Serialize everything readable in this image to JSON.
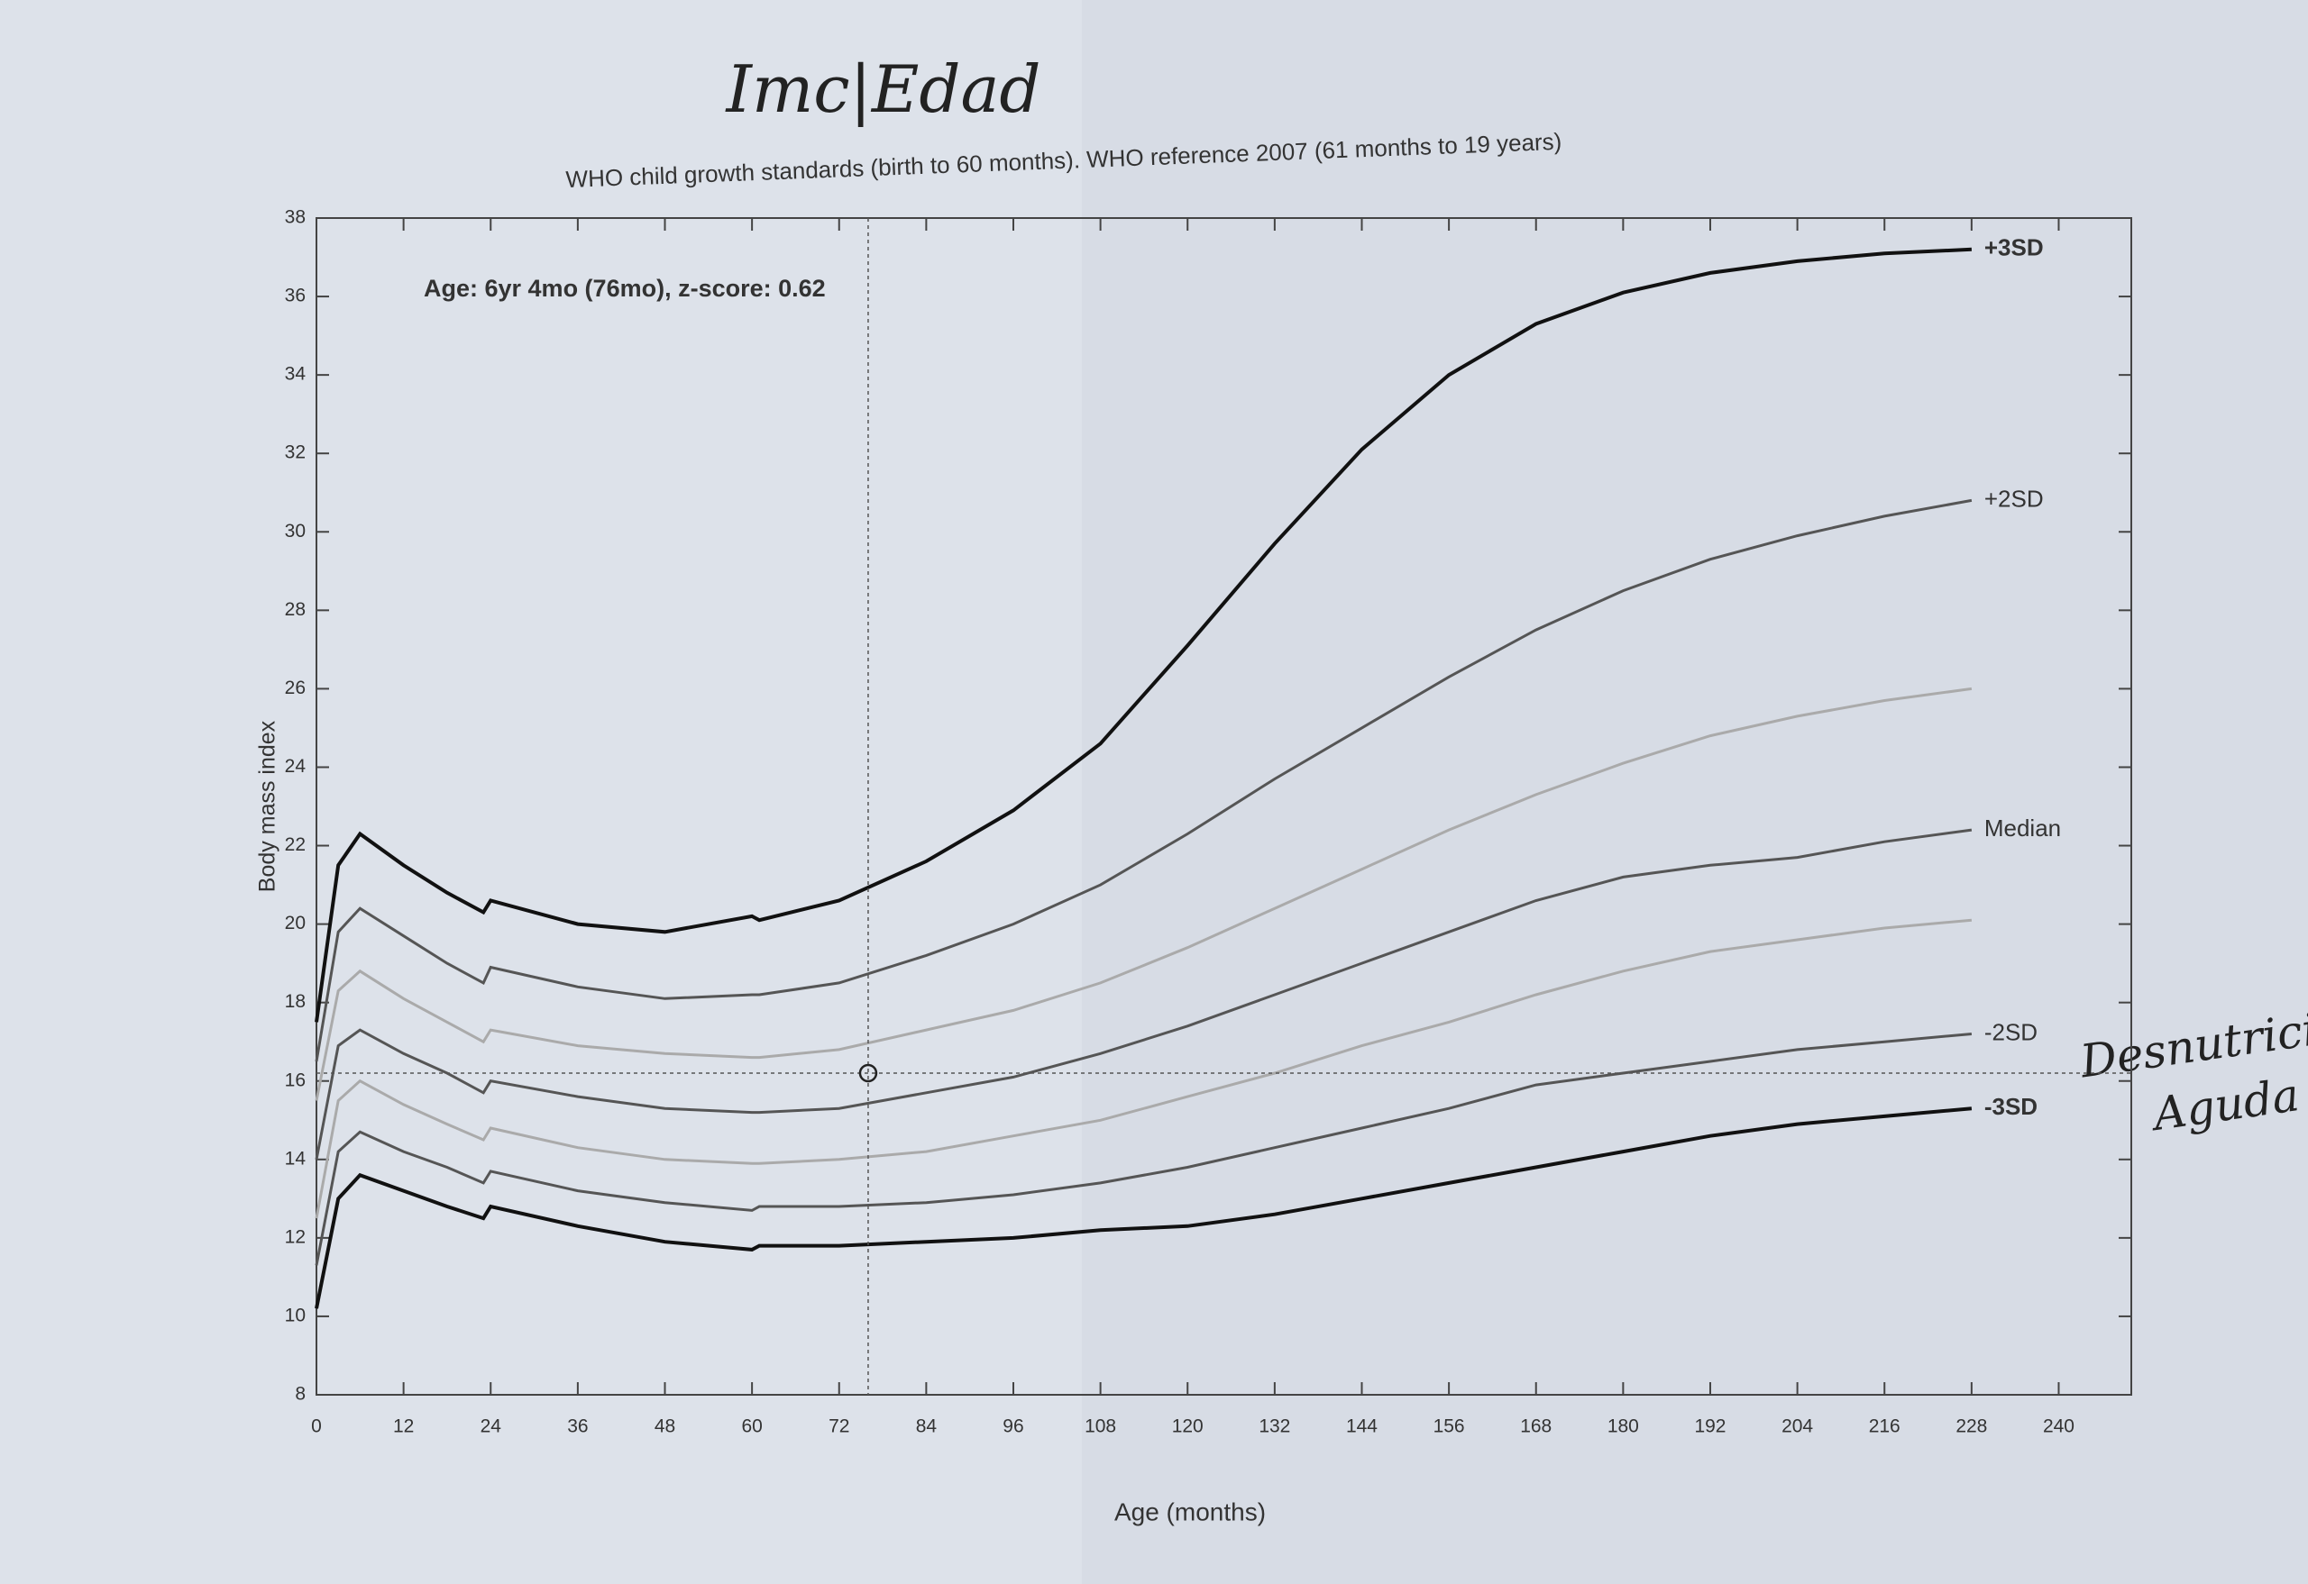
{
  "chart_data": {
    "type": "line",
    "handwritten_title": "Imc|Edad",
    "title": "WHO child growth standards (birth to 60 months). WHO reference 2007 (61 months to 19 years)",
    "annotation": "Age: 6yr 4mo (76mo), z-score: 0.62",
    "handwritten_note": [
      "Desnutrición",
      "Aguda"
    ],
    "xlabel": "Age (months)",
    "ylabel": "Body mass index",
    "xlim": [
      0,
      250
    ],
    "ylim": [
      8,
      38
    ],
    "xticks": [
      0,
      12,
      24,
      36,
      48,
      60,
      72,
      84,
      96,
      108,
      120,
      132,
      144,
      156,
      168,
      180,
      192,
      204,
      216,
      228,
      240
    ],
    "yticks": [
      8,
      10,
      12,
      14,
      16,
      18,
      20,
      22,
      24,
      26,
      28,
      30,
      32,
      34,
      36,
      38
    ],
    "x": [
      0,
      3,
      6,
      12,
      18,
      23,
      24,
      36,
      48,
      60,
      61,
      72,
      84,
      96,
      108,
      120,
      132,
      144,
      156,
      168,
      180,
      192,
      204,
      216,
      228
    ],
    "series": [
      {
        "name": "+3SD",
        "color": "#111111",
        "values": [
          17.5,
          21.5,
          22.3,
          21.5,
          20.8,
          20.3,
          20.6,
          20.0,
          19.8,
          20.2,
          20.1,
          20.6,
          21.6,
          22.9,
          24.6,
          27.1,
          29.7,
          32.1,
          34.0,
          35.3,
          36.1,
          36.6,
          36.9,
          37.1,
          37.2
        ]
      },
      {
        "name": "+2SD",
        "color": "#555555",
        "values": [
          16.5,
          19.8,
          20.4,
          19.7,
          19.0,
          18.5,
          18.9,
          18.4,
          18.1,
          18.2,
          18.2,
          18.5,
          19.2,
          20.0,
          21.0,
          22.3,
          23.7,
          25.0,
          26.3,
          27.5,
          28.5,
          29.3,
          29.9,
          30.4,
          30.8
        ]
      },
      {
        "color": "#aaaaaa",
        "values": [
          15.5,
          18.3,
          18.8,
          18.1,
          17.5,
          17.0,
          17.3,
          16.9,
          16.7,
          16.6,
          16.6,
          16.8,
          17.3,
          17.8,
          18.5,
          19.4,
          20.4,
          21.4,
          22.4,
          23.3,
          24.1,
          24.8,
          25.3,
          25.7,
          26.0
        ]
      },
      {
        "name": "Median",
        "color": "#555555",
        "values": [
          14.0,
          16.9,
          17.3,
          16.7,
          16.2,
          15.7,
          16.0,
          15.6,
          15.3,
          15.2,
          15.2,
          15.3,
          15.7,
          16.1,
          16.7,
          17.4,
          18.2,
          19.0,
          19.8,
          20.6,
          21.2,
          21.5,
          21.7,
          22.1,
          22.4
        ]
      },
      {
        "color": "#aaaaaa",
        "values": [
          12.5,
          15.5,
          16.0,
          15.4,
          14.9,
          14.5,
          14.8,
          14.3,
          14.0,
          13.9,
          13.9,
          14.0,
          14.2,
          14.6,
          15.0,
          15.6,
          16.2,
          16.9,
          17.5,
          18.2,
          18.8,
          19.3,
          19.6,
          19.9,
          20.1
        ]
      },
      {
        "name": "-2SD",
        "color": "#555555",
        "values": [
          11.3,
          14.2,
          14.7,
          14.2,
          13.8,
          13.4,
          13.7,
          13.2,
          12.9,
          12.7,
          12.8,
          12.8,
          12.9,
          13.1,
          13.4,
          13.8,
          14.3,
          14.8,
          15.3,
          15.9,
          16.2,
          16.5,
          16.8,
          17.0,
          17.2
        ]
      },
      {
        "name": "-3SD",
        "color": "#111111",
        "values": [
          10.2,
          13.0,
          13.6,
          13.2,
          12.8,
          12.5,
          12.8,
          12.3,
          11.9,
          11.7,
          11.8,
          11.8,
          11.9,
          12.0,
          12.2,
          12.3,
          12.6,
          13.0,
          13.4,
          13.8,
          14.2,
          14.6,
          14.9,
          15.1,
          15.3
        ]
      }
    ],
    "point": {
      "x": 76,
      "y": 16.2
    }
  }
}
